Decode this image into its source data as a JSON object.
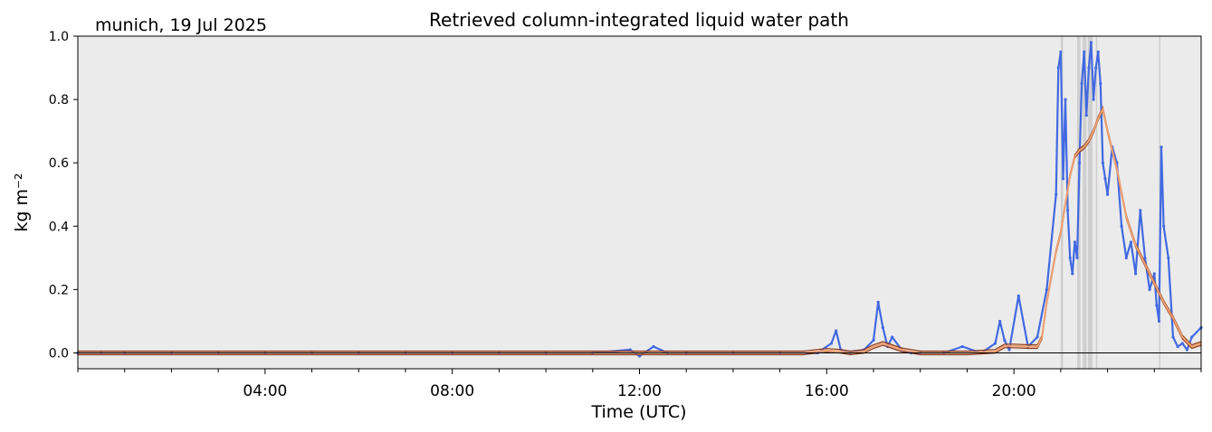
{
  "chart_data": {
    "type": "line",
    "title": "Retrieved column-integrated liquid water path",
    "subtitle": "munich, 19 Jul 2025",
    "xlabel": "Time (UTC)",
    "ylabel": "kg m⁻²",
    "xlim": [
      0,
      24
    ],
    "ylim": [
      -0.05,
      1.0
    ],
    "x_ticks": [
      {
        "value": 4,
        "label": "04:00"
      },
      {
        "value": 8,
        "label": "08:00"
      },
      {
        "value": 12,
        "label": "12:00"
      },
      {
        "value": 16,
        "label": "16:00"
      },
      {
        "value": 20,
        "label": "20:00"
      }
    ],
    "y_ticks": [
      {
        "value": 0.0,
        "label": "0.0"
      },
      {
        "value": 0.2,
        "label": "0.2"
      },
      {
        "value": 0.4,
        "label": "0.4"
      },
      {
        "value": 0.6,
        "label": "0.6"
      },
      {
        "value": 0.8,
        "label": "0.8"
      },
      {
        "value": 1.0,
        "label": "1.0"
      }
    ],
    "zero_line": 0.0,
    "grid": false,
    "colors": {
      "background": "#ebebeb",
      "raw": "#4169e1",
      "smoothed_outline": "#8b3a1a",
      "smoothed_fill": "#f0a070",
      "flag": "#c8c8c8"
    },
    "flag_intervals": [
      [
        21.0,
        21.05
      ],
      [
        21.35,
        21.42
      ],
      [
        21.47,
        21.55
      ],
      [
        21.58,
        21.68
      ],
      [
        21.75,
        21.78
      ],
      [
        23.1,
        23.13
      ]
    ],
    "series": [
      {
        "style": "scatter",
        "x": [
          0.0,
          0.5,
          1.0,
          2.0,
          3.0,
          4.0,
          5.0,
          6.0,
          7.0,
          8.0,
          9.0,
          10.0,
          11.0,
          11.8,
          12.0,
          12.3,
          12.6,
          13.0,
          14.0,
          15.0,
          15.8,
          16.1,
          16.2,
          16.3,
          16.5,
          16.8,
          17.0,
          17.1,
          17.2,
          17.3,
          17.4,
          17.6,
          17.8,
          18.0,
          18.5,
          18.9,
          19.3,
          19.6,
          19.7,
          19.8,
          19.9,
          20.1,
          20.3,
          20.5,
          20.7,
          20.9,
          20.95,
          21.0,
          21.05,
          21.1,
          21.15,
          21.2,
          21.25,
          21.3,
          21.35,
          21.4,
          21.45,
          21.5,
          21.55,
          21.6,
          21.65,
          21.7,
          21.75,
          21.8,
          21.85,
          21.9,
          21.95,
          22.0,
          22.1,
          22.2,
          22.3,
          22.4,
          22.5,
          22.6,
          22.7,
          22.8,
          22.9,
          23.0,
          23.05,
          23.1,
          23.15,
          23.2,
          23.3,
          23.4,
          23.5,
          23.6,
          23.7,
          23.8,
          24.0
        ],
        "y": [
          0.0,
          0.0,
          0.0,
          0.0,
          0.0,
          0.0,
          0.0,
          0.0,
          0.0,
          0.0,
          0.0,
          0.0,
          0.0,
          0.01,
          -0.01,
          0.02,
          0.0,
          0.0,
          0.0,
          0.0,
          0.0,
          0.03,
          0.07,
          0.01,
          0.0,
          0.01,
          0.04,
          0.16,
          0.08,
          0.02,
          0.05,
          0.01,
          0.0,
          0.0,
          0.0,
          0.02,
          0.0,
          0.03,
          0.1,
          0.04,
          0.01,
          0.18,
          0.02,
          0.05,
          0.2,
          0.5,
          0.9,
          0.95,
          0.55,
          0.8,
          0.45,
          0.3,
          0.25,
          0.35,
          0.3,
          0.6,
          0.85,
          0.95,
          0.75,
          0.9,
          0.98,
          0.8,
          0.9,
          0.95,
          0.85,
          0.6,
          0.55,
          0.5,
          0.65,
          0.6,
          0.4,
          0.3,
          0.35,
          0.25,
          0.45,
          0.3,
          0.2,
          0.25,
          0.15,
          0.1,
          0.65,
          0.4,
          0.3,
          0.05,
          0.02,
          0.03,
          0.01,
          0.05,
          0.08
        ]
      },
      {
        "style": "band",
        "x": [
          0.0,
          1.0,
          4.0,
          8.0,
          12.0,
          15.5,
          15.8,
          16.0,
          16.3,
          16.5,
          16.8,
          17.0,
          17.2,
          17.4,
          17.6,
          17.8,
          18.0,
          19.0,
          19.6,
          19.8,
          20.0,
          20.3,
          20.5,
          20.6,
          20.7,
          20.8,
          20.9,
          21.0,
          21.1,
          21.2,
          21.3,
          21.4,
          21.5,
          21.6,
          21.7,
          21.8,
          21.9,
          22.0,
          22.2,
          22.4,
          22.6,
          22.8,
          23.0,
          23.2,
          23.4,
          23.6,
          23.8,
          24.0
        ],
        "y": [
          0.0,
          0.0,
          0.0,
          0.0,
          0.0,
          0.0,
          0.005,
          0.008,
          0.005,
          0.0,
          0.005,
          0.02,
          0.03,
          0.02,
          0.01,
          0.005,
          0.0,
          0.0,
          0.005,
          0.022,
          0.022,
          0.02,
          0.02,
          0.05,
          0.16,
          0.24,
          0.32,
          0.38,
          0.47,
          0.56,
          0.62,
          0.64,
          0.65,
          0.67,
          0.7,
          0.74,
          0.77,
          0.7,
          0.58,
          0.43,
          0.34,
          0.28,
          0.22,
          0.16,
          0.11,
          0.05,
          0.02,
          0.03
        ]
      }
    ]
  }
}
